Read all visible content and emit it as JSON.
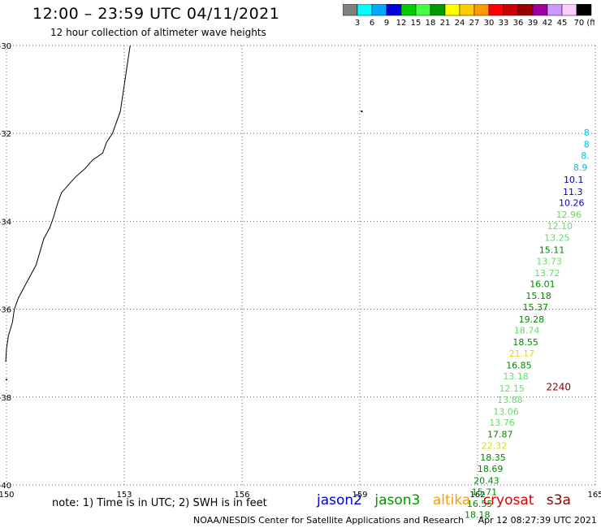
{
  "header": {
    "title": "12:00 – 23:59 UTC 04/11/2021",
    "subtitle": "12 hour collection of altimeter wave heights"
  },
  "colorbar": {
    "colors": [
      "#808080",
      "#00ffff",
      "#00aaff",
      "#0000e0",
      "#00cc00",
      "#44ff44",
      "#009900",
      "#ffff00",
      "#ffcc00",
      "#ff9900",
      "#ff0000",
      "#cc0000",
      "#990000",
      "#a000a0",
      "#cc99ff",
      "#ffccff",
      "#000000"
    ],
    "labels": [
      "3",
      "6",
      "9",
      "12",
      "15",
      "18",
      "21",
      "24",
      "27",
      "30",
      "33",
      "36",
      "39",
      "42",
      "45",
      "70 (ft)"
    ]
  },
  "chart_data": {
    "type": "map",
    "xlim": [
      150,
      165
    ],
    "ylim": [
      -40,
      -30
    ],
    "x_ticks": [
      "150",
      "153",
      "156",
      "159",
      "162",
      "165"
    ],
    "y_ticks": [
      "-30",
      "-32",
      "-34",
      "-36",
      "-38",
      "-40"
    ],
    "grid": true,
    "track_points": [
      {
        "lon": 164.85,
        "lat": -32.05,
        "value": "8",
        "color": "#00bfe0"
      },
      {
        "lon": 164.85,
        "lat": -32.32,
        "value": "8",
        "color": "#00bfe0"
      },
      {
        "lon": 164.85,
        "lat": -32.58,
        "value": "8.",
        "color": "#00bfe0"
      },
      {
        "lon": 164.8,
        "lat": -32.85,
        "value": "8.9",
        "color": "#00bfe0"
      },
      {
        "lon": 164.7,
        "lat": -33.12,
        "value": "10.1",
        "color": "#0000c0"
      },
      {
        "lon": 164.68,
        "lat": -33.4,
        "value": "11.3",
        "color": "#0000c0"
      },
      {
        "lon": 164.72,
        "lat": -33.65,
        "value": "10.26",
        "color": "#0000c0"
      },
      {
        "lon": 164.65,
        "lat": -33.92,
        "value": "12.96",
        "color": "#66dd66"
      },
      {
        "lon": 164.42,
        "lat": -34.18,
        "value": "12.10",
        "color": "#66dd66"
      },
      {
        "lon": 164.35,
        "lat": -34.45,
        "value": "13.25",
        "color": "#66dd66"
      },
      {
        "lon": 164.22,
        "lat": -34.72,
        "value": "15.11",
        "color": "#008800"
      },
      {
        "lon": 164.15,
        "lat": -34.98,
        "value": "13.73",
        "color": "#66dd66"
      },
      {
        "lon": 164.1,
        "lat": -35.25,
        "value": "13.72",
        "color": "#66dd66"
      },
      {
        "lon": 163.98,
        "lat": -35.5,
        "value": "16.01",
        "color": "#008800"
      },
      {
        "lon": 163.88,
        "lat": -35.77,
        "value": "15.18",
        "color": "#008800"
      },
      {
        "lon": 163.8,
        "lat": -36.03,
        "value": "15.37",
        "color": "#008800"
      },
      {
        "lon": 163.7,
        "lat": -36.3,
        "value": "19.28",
        "color": "#008800"
      },
      {
        "lon": 163.58,
        "lat": -36.55,
        "value": "18.74",
        "color": "#66dd66"
      },
      {
        "lon": 163.55,
        "lat": -36.82,
        "value": "18.55",
        "color": "#008800"
      },
      {
        "lon": 163.45,
        "lat": -37.08,
        "value": "21.17",
        "color": "#dddd00"
      },
      {
        "lon": 163.38,
        "lat": -37.35,
        "value": "16.85",
        "color": "#008800"
      },
      {
        "lon": 163.3,
        "lat": -37.6,
        "value": "13.18",
        "color": "#66dd66"
      },
      {
        "lon": 163.2,
        "lat": -37.87,
        "value": "12.15",
        "color": "#66dd66"
      },
      {
        "lon": 163.15,
        "lat": -38.13,
        "value": "13.88",
        "color": "#66dd66"
      },
      {
        "lon": 163.05,
        "lat": -38.4,
        "value": "13.06",
        "color": "#66dd66"
      },
      {
        "lon": 162.95,
        "lat": -38.65,
        "value": "13.76",
        "color": "#66dd66"
      },
      {
        "lon": 162.9,
        "lat": -38.92,
        "value": "17.87",
        "color": "#008800"
      },
      {
        "lon": 162.75,
        "lat": -39.18,
        "value": "22.32",
        "color": "#dddd00"
      },
      {
        "lon": 162.72,
        "lat": -39.45,
        "value": "18.35",
        "color": "#008800"
      },
      {
        "lon": 162.65,
        "lat": -39.7,
        "value": "18.69",
        "color": "#008800"
      },
      {
        "lon": 162.55,
        "lat": -39.97,
        "value": "20.43",
        "color": "#008800"
      },
      {
        "lon": 162.5,
        "lat": -40.23,
        "value": "15.71",
        "color": "#008800"
      },
      {
        "lon": 162.38,
        "lat": -40.5,
        "value": "16.55",
        "color": "#008800"
      },
      {
        "lon": 162.32,
        "lat": -40.75,
        "value": "18.18",
        "color": "#008800"
      }
    ],
    "extra_labels": [
      {
        "lon": 164.38,
        "lat": -37.85,
        "value": "2240",
        "color": "#880000"
      }
    ]
  },
  "footer": {
    "note": "note: 1) Time is in UTC; 2) SWH is in feet",
    "satellites": [
      {
        "name": "jason2",
        "color": "#0000dd"
      },
      {
        "name": "jason3",
        "color": "#009900"
      },
      {
        "name": "altika",
        "color": "#ff9900"
      },
      {
        "name": "cryosat",
        "color": "#dd0000"
      },
      {
        "name": "s3a",
        "color": "#880000"
      }
    ],
    "credit": "NOAA/NESDIS Center for Satellite Applications and Research",
    "timestamp": "Apr 12 08:27:39 UTC 2021"
  }
}
